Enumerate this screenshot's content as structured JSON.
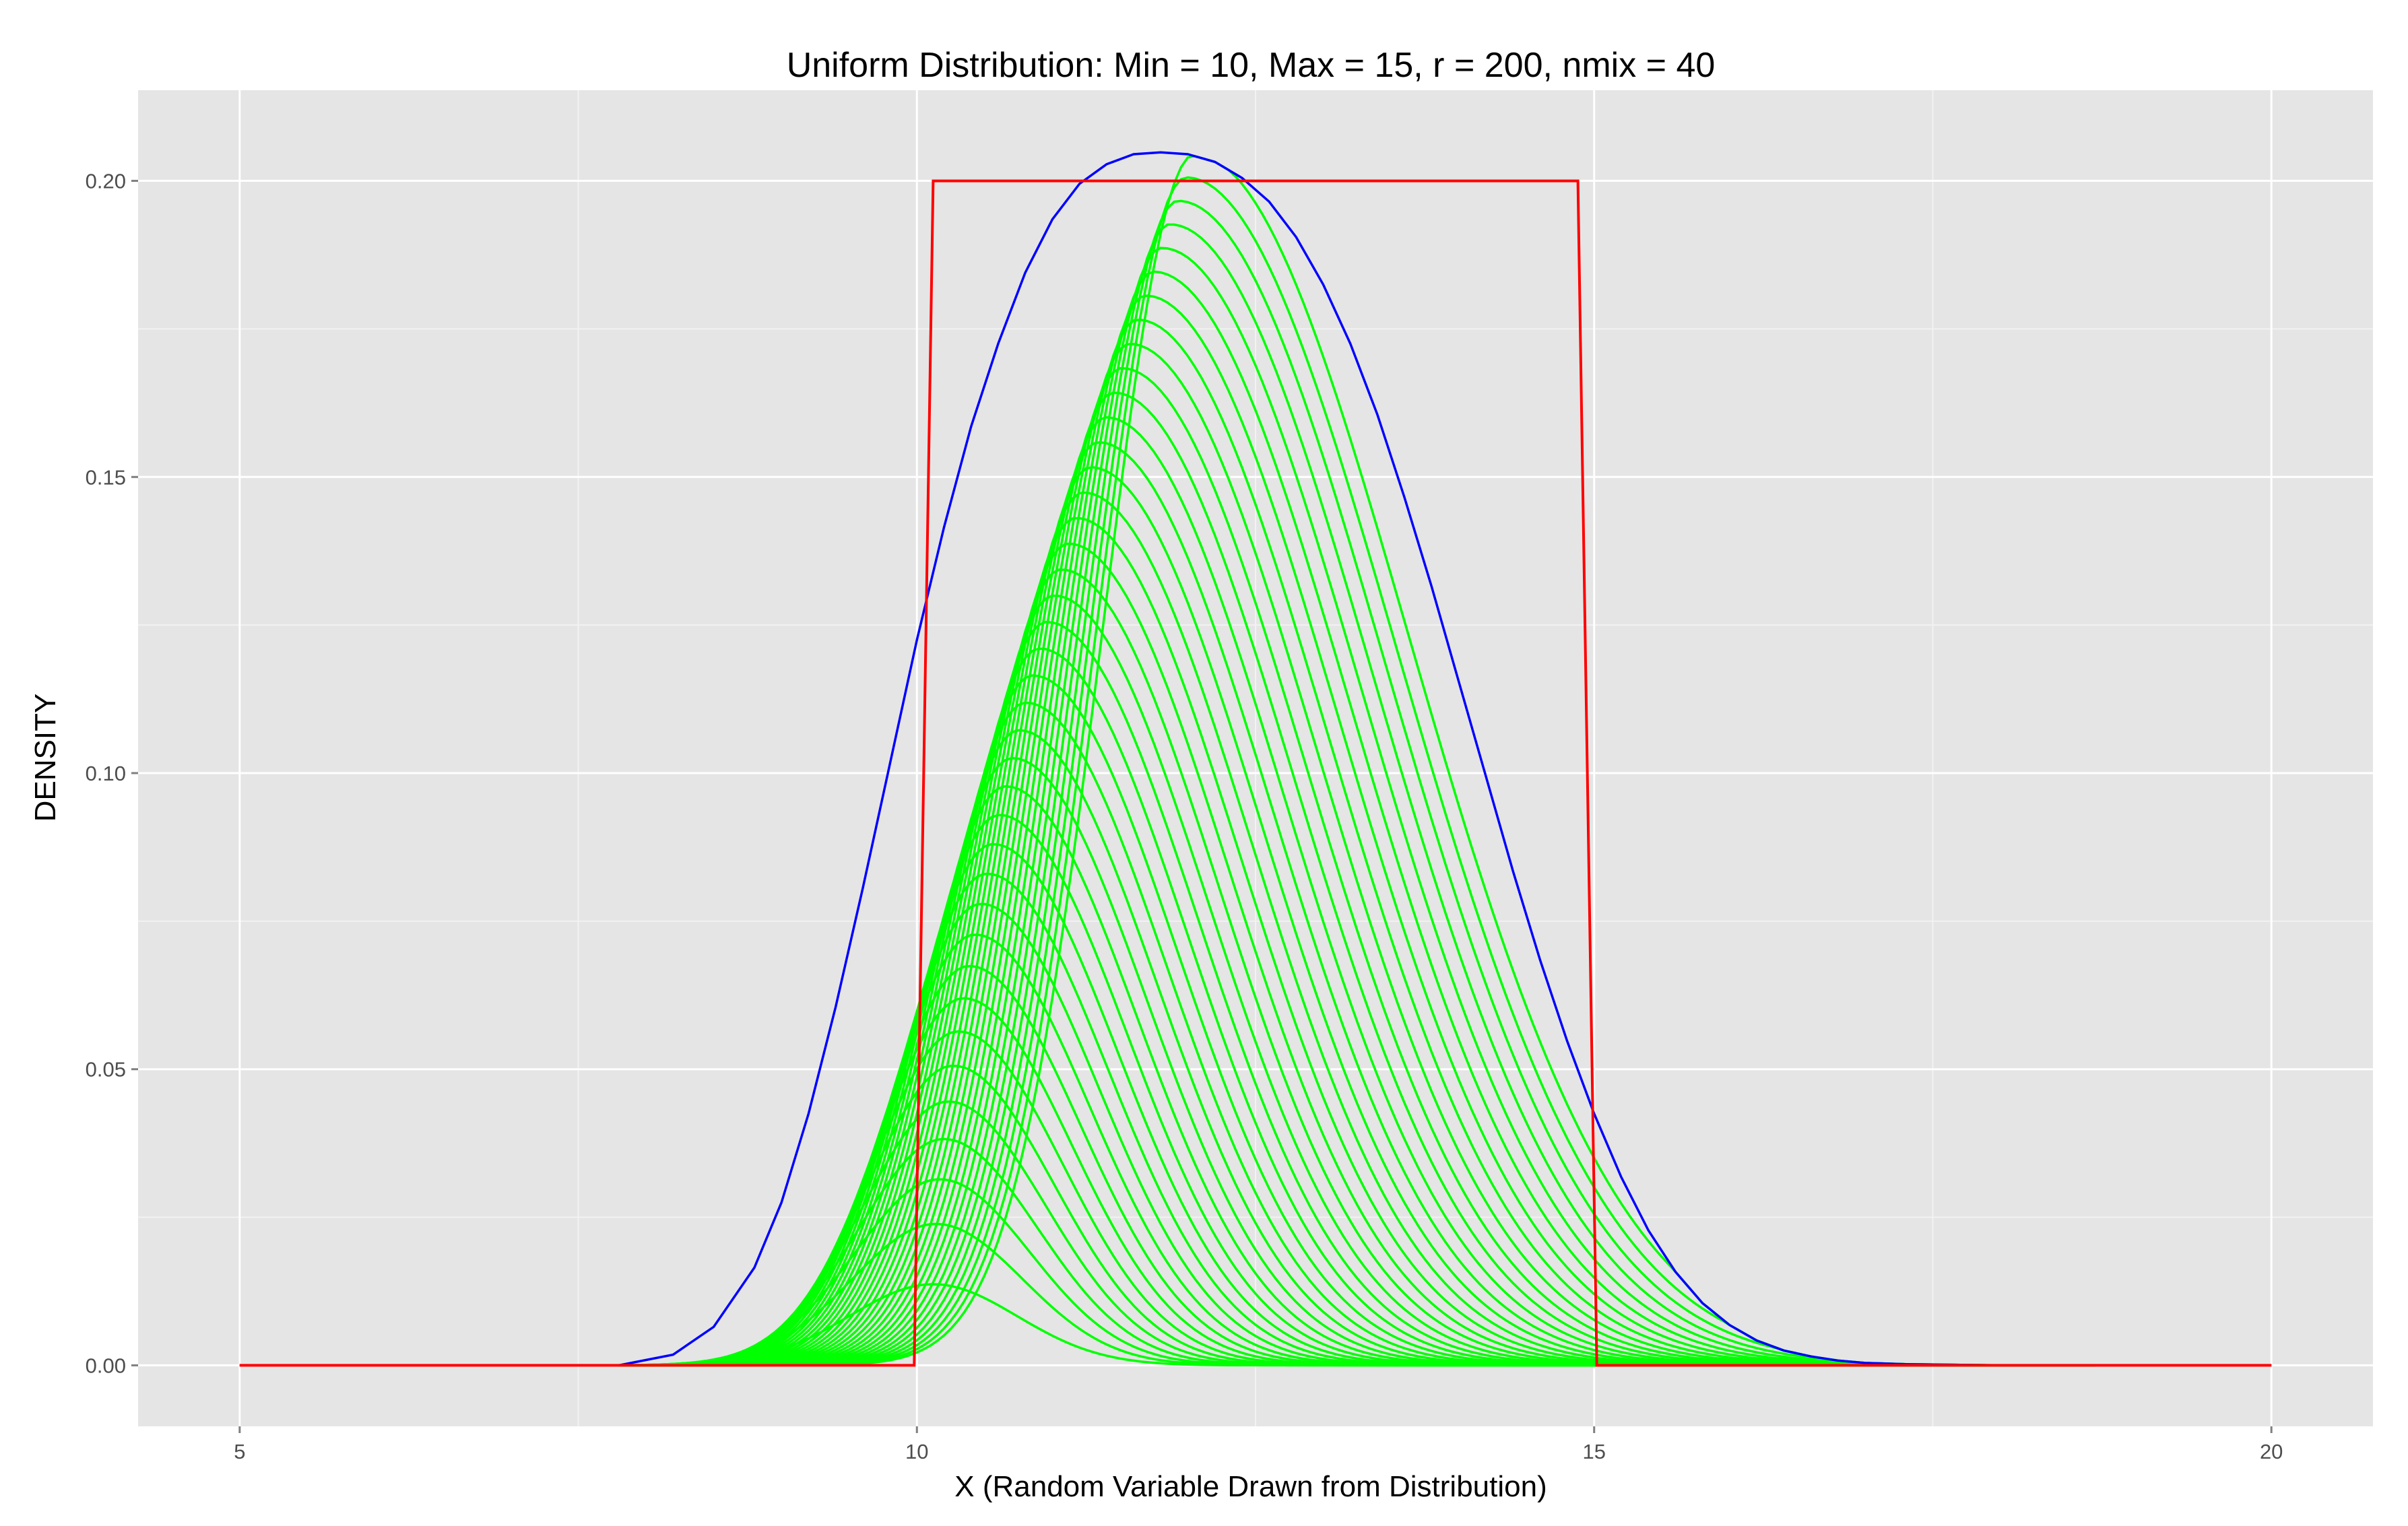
{
  "chart_data": {
    "type": "line",
    "title": "Uniform Distribution: Min = 10, Max = 15, r = 200, nmix = 40",
    "xlabel": "X (Random Variable Drawn from Distribution)",
    "ylabel": "DENSITY",
    "xlim": [
      4.25,
      20.75
    ],
    "ylim": [
      -0.0103,
      0.2153
    ],
    "x_ticks": [
      5,
      10,
      15,
      20
    ],
    "x_tick_labels": [
      "5",
      "10",
      "15",
      "20"
    ],
    "y_ticks": [
      0.0,
      0.05,
      0.1,
      0.15,
      0.2
    ],
    "y_tick_labels": [
      "0.00",
      "0.05",
      "0.10",
      "0.15",
      "0.20"
    ],
    "grid": true,
    "legend": "none",
    "colors": {
      "panel": "#e5e5e5",
      "grid_major": "#ffffff",
      "grid_minor": "#f2f2f2",
      "tick_text": "#4d4d4d",
      "mixture_components": "#00ff00",
      "full_mixture": "#0000ff",
      "uniform_density": "#ff0000"
    },
    "series": [
      {
        "role": "uniform_density",
        "x": [
          5,
          9.98,
          10.12,
          14.88,
          15.02,
          20
        ],
        "y": [
          0,
          0,
          0.2,
          0.2,
          0,
          0
        ]
      },
      {
        "role": "full_mixture",
        "x": [
          5,
          7.8,
          8.2,
          8.5,
          8.8,
          9.0,
          9.2,
          9.4,
          9.6,
          9.8,
          10.0,
          10.2,
          10.4,
          10.6,
          10.8,
          11.0,
          11.2,
          11.4,
          11.6,
          11.8,
          12.0,
          12.2,
          12.4,
          12.6,
          12.8,
          13.0,
          13.2,
          13.4,
          13.6,
          13.8,
          14.0,
          14.2,
          14.4,
          14.6,
          14.8,
          15.0,
          15.2,
          15.4,
          15.6,
          15.8,
          16.0,
          16.2,
          16.4,
          16.6,
          16.8,
          17.0,
          17.3,
          17.6,
          18.0,
          18.5,
          20
        ],
        "y": [
          0,
          0.0,
          0.0018,
          0.0065,
          0.0165,
          0.0275,
          0.0425,
          0.0605,
          0.0805,
          0.1015,
          0.1225,
          0.1415,
          0.1585,
          0.1725,
          0.1845,
          0.1935,
          0.1995,
          0.2028,
          0.2045,
          0.2048,
          0.2045,
          0.2032,
          0.2005,
          0.1965,
          0.1905,
          0.1825,
          0.1725,
          0.1605,
          0.1465,
          0.1315,
          0.1155,
          0.0995,
          0.0835,
          0.0685,
          0.0548,
          0.0425,
          0.0318,
          0.0228,
          0.0158,
          0.0105,
          0.0068,
          0.0042,
          0.0025,
          0.0015,
          0.0008,
          0.0004,
          0.0002,
          0.0001,
          0.0,
          0.0,
          0
        ]
      }
    ],
    "mixture_components": {
      "count": 40,
      "peak_x_first": 10.12,
      "peak_x_last": 12.05,
      "peak_y_first": 0.0137,
      "peak_y_last": 0.2045,
      "curve_start_x": 7.8,
      "curve_end_x": 18.7
    }
  }
}
